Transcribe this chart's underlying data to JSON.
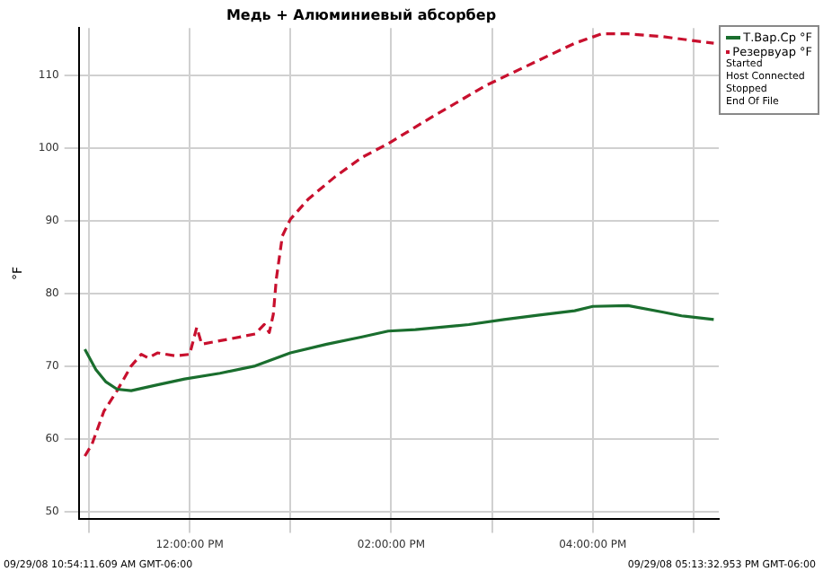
{
  "chart_data": {
    "type": "line",
    "title": "Медь + Алюминиевый абсорбер",
    "ylabel": "°F",
    "xlim": [
      10.9,
      17.25
    ],
    "xticks": [
      {
        "value": 11,
        "label": null
      },
      {
        "value": 12,
        "label": "12:00:00 PM"
      },
      {
        "value": 13,
        "label": null
      },
      {
        "value": 14,
        "label": "02:00:00 PM"
      },
      {
        "value": 15,
        "label": null
      },
      {
        "value": 16,
        "label": "04:00:00 PM"
      },
      {
        "value": 17,
        "label": null
      }
    ],
    "ylim": [
      49,
      116.5
    ],
    "yticks": [
      50,
      60,
      70,
      80,
      90,
      100,
      110
    ],
    "grid": true,
    "legend": "top right",
    "marker": "none",
    "series": [
      {
        "name": "Т.Вар.Ср °F",
        "color": "#1a6e2e",
        "line_style": "solid",
        "x": [
          10.96,
          11.07,
          11.17,
          11.28,
          11.42,
          11.68,
          11.95,
          12.3,
          12.65,
          13.0,
          13.36,
          13.71,
          13.97,
          14.24,
          14.77,
          15.12,
          15.47,
          15.82,
          16.0,
          16.35,
          16.7,
          16.88,
          17.2
        ],
        "values": [
          72.3,
          69.5,
          67.8,
          66.8,
          66.6,
          67.4,
          68.2,
          69.0,
          70.0,
          71.8,
          73.0,
          74.0,
          74.8,
          75.0,
          75.7,
          76.4,
          77.0,
          77.6,
          78.2,
          78.3,
          77.4,
          76.9,
          76.4
        ]
      },
      {
        "name": "Резервуар °F",
        "color": "#c8102e",
        "line_style": "dashed",
        "x": [
          10.96,
          11.03,
          11.15,
          11.28,
          11.42,
          11.52,
          11.59,
          11.68,
          11.86,
          12.0,
          12.07,
          12.12,
          12.39,
          12.65,
          12.74,
          12.79,
          12.83,
          12.86,
          12.92,
          13.0,
          13.18,
          13.44,
          13.71,
          13.97,
          14.41,
          14.94,
          15.47,
          15.82,
          16.09,
          16.35,
          16.7,
          17.2
        ],
        "values": [
          57.6,
          59.2,
          63.8,
          66.6,
          70.0,
          71.6,
          71.1,
          71.8,
          71.4,
          71.6,
          75.3,
          73.0,
          73.7,
          74.4,
          75.7,
          74.6,
          77.1,
          82.0,
          87.9,
          90.2,
          93.0,
          96.0,
          98.7,
          100.6,
          104.3,
          108.6,
          112.1,
          114.4,
          115.7,
          115.7,
          115.3,
          114.4
        ]
      }
    ],
    "annotations": [
      "Started",
      "Host Connected",
      "Stopped",
      "End Of File",
      "09/29/08 10:54:11.609 AM GMT-06:00",
      "09/29/08 05:13:32.953 PM GMT-06:00"
    ]
  }
}
